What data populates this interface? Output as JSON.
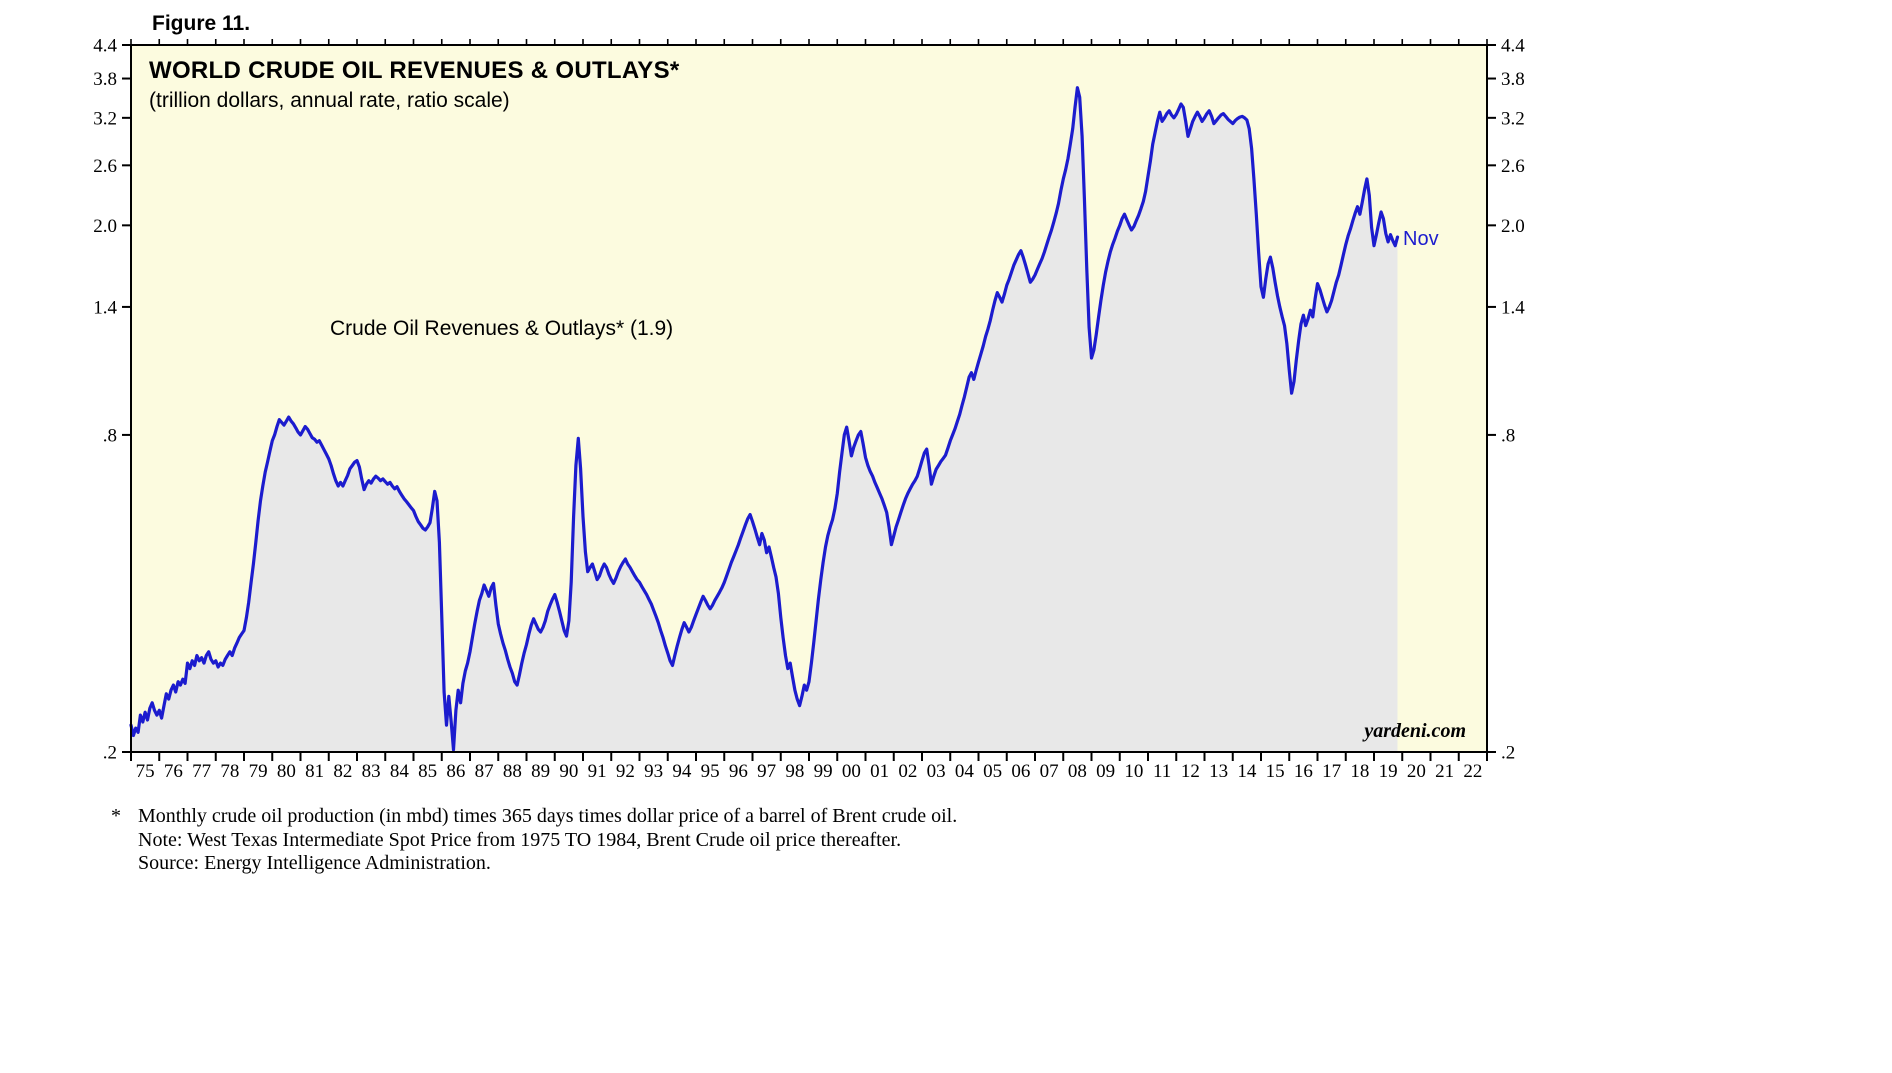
{
  "figure_label": "Figure 11.",
  "chart": {
    "title": "WORLD CRUDE OIL REVENUES & OUTLAYS*",
    "subtitle": "(trillion dollars, annual rate, ratio scale)",
    "series_annotation": "Crude Oil Revenues & Outlays* (1.9)",
    "latest_point_label": "Nov",
    "watermark": "yardeni.com"
  },
  "footnotes": {
    "star": "*",
    "lines": [
      "Monthly crude oil production (in mbd) times 365 days times dollar price of a barrel of Brent crude oil.",
      "Note: West Texas Intermediate Spot Price from 1975 TO 1984, Brent Crude oil price thereafter.",
      "Source: Energy Intelligence Administration."
    ]
  },
  "colors": {
    "plot_bg": "#FCFBDF",
    "area_fill": "#E8E8E8",
    "line": "#1C1CCE",
    "frame": "#000000"
  },
  "chart_data": {
    "type": "line",
    "title": "WORLD CRUDE OIL REVENUES & OUTLAYS*",
    "subtitle": "(trillion dollars, annual rate, ratio scale)",
    "yscale": "log",
    "ylim": [
      0.2,
      4.4
    ],
    "xlim": [
      1975,
      2023
    ],
    "grid": false,
    "legend": "inline annotation",
    "latest_value": 1.9,
    "latest_month": "Nov",
    "y_ticks": [
      {
        "value": 4.4,
        "label": "4.4"
      },
      {
        "value": 3.8,
        "label": "3.8"
      },
      {
        "value": 3.2,
        "label": "3.2"
      },
      {
        "value": 2.6,
        "label": "2.6"
      },
      {
        "value": 2.0,
        "label": "2.0"
      },
      {
        "value": 1.4,
        "label": "1.4"
      },
      {
        "value": 0.8,
        "label": ".8"
      },
      {
        "value": 0.2,
        "label": ".2"
      }
    ],
    "x_tick_labels": [
      "75",
      "76",
      "77",
      "78",
      "79",
      "80",
      "81",
      "82",
      "83",
      "84",
      "85",
      "86",
      "87",
      "88",
      "89",
      "90",
      "91",
      "92",
      "93",
      "94",
      "95",
      "96",
      "97",
      "98",
      "99",
      "00",
      "01",
      "02",
      "03",
      "04",
      "05",
      "06",
      "07",
      "08",
      "09",
      "10",
      "11",
      "12",
      "13",
      "14",
      "15",
      "16",
      "17",
      "18",
      "19",
      "20",
      "21",
      "22"
    ],
    "series": [
      {
        "name": "Crude Oil Revenues & Outlays",
        "start_year": 1975,
        "frequency": "monthly",
        "values": [
          0.225,
          0.215,
          0.222,
          0.218,
          0.235,
          0.228,
          0.238,
          0.23,
          0.242,
          0.248,
          0.24,
          0.235,
          0.24,
          0.232,
          0.245,
          0.258,
          0.252,
          0.262,
          0.268,
          0.26,
          0.272,
          0.268,
          0.275,
          0.27,
          0.295,
          0.288,
          0.298,
          0.292,
          0.305,
          0.298,
          0.302,
          0.295,
          0.305,
          0.31,
          0.3,
          0.295,
          0.298,
          0.29,
          0.295,
          0.292,
          0.3,
          0.305,
          0.31,
          0.305,
          0.315,
          0.322,
          0.33,
          0.335,
          0.34,
          0.36,
          0.385,
          0.42,
          0.455,
          0.5,
          0.55,
          0.6,
          0.64,
          0.68,
          0.71,
          0.745,
          0.78,
          0.8,
          0.83,
          0.855,
          0.845,
          0.835,
          0.85,
          0.865,
          0.85,
          0.84,
          0.825,
          0.81,
          0.8,
          0.815,
          0.83,
          0.82,
          0.805,
          0.79,
          0.785,
          0.775,
          0.78,
          0.765,
          0.75,
          0.735,
          0.72,
          0.7,
          0.675,
          0.655,
          0.64,
          0.65,
          0.64,
          0.655,
          0.67,
          0.69,
          0.7,
          0.71,
          0.715,
          0.695,
          0.66,
          0.63,
          0.645,
          0.655,
          0.648,
          0.66,
          0.668,
          0.662,
          0.655,
          0.66,
          0.652,
          0.645,
          0.65,
          0.64,
          0.632,
          0.638,
          0.625,
          0.615,
          0.605,
          0.598,
          0.59,
          0.582,
          0.575,
          0.56,
          0.548,
          0.54,
          0.532,
          0.528,
          0.535,
          0.545,
          0.58,
          0.625,
          0.6,
          0.5,
          0.36,
          0.26,
          0.225,
          0.255,
          0.228,
          0.202,
          0.24,
          0.262,
          0.248,
          0.27,
          0.285,
          0.295,
          0.31,
          0.33,
          0.35,
          0.37,
          0.388,
          0.4,
          0.415,
          0.405,
          0.395,
          0.41,
          0.418,
          0.38,
          0.35,
          0.335,
          0.322,
          0.312,
          0.3,
          0.29,
          0.282,
          0.272,
          0.268,
          0.28,
          0.295,
          0.308,
          0.32,
          0.335,
          0.348,
          0.358,
          0.35,
          0.342,
          0.338,
          0.345,
          0.355,
          0.37,
          0.38,
          0.39,
          0.398,
          0.385,
          0.37,
          0.355,
          0.34,
          0.332,
          0.355,
          0.42,
          0.56,
          0.7,
          0.788,
          0.69,
          0.56,
          0.48,
          0.44,
          0.448,
          0.455,
          0.44,
          0.425,
          0.432,
          0.445,
          0.455,
          0.448,
          0.435,
          0.425,
          0.418,
          0.428,
          0.44,
          0.45,
          0.458,
          0.465,
          0.455,
          0.448,
          0.44,
          0.432,
          0.425,
          0.42,
          0.412,
          0.405,
          0.398,
          0.39,
          0.382,
          0.372,
          0.362,
          0.352,
          0.34,
          0.33,
          0.318,
          0.308,
          0.298,
          0.292,
          0.305,
          0.318,
          0.33,
          0.342,
          0.352,
          0.345,
          0.338,
          0.345,
          0.355,
          0.365,
          0.375,
          0.385,
          0.395,
          0.388,
          0.38,
          0.374,
          0.38,
          0.388,
          0.395,
          0.402,
          0.41,
          0.42,
          0.432,
          0.445,
          0.458,
          0.47,
          0.482,
          0.495,
          0.51,
          0.525,
          0.54,
          0.555,
          0.565,
          0.548,
          0.53,
          0.512,
          0.495,
          0.52,
          0.505,
          0.478,
          0.49,
          0.47,
          0.448,
          0.43,
          0.4,
          0.36,
          0.33,
          0.305,
          0.288,
          0.295,
          0.278,
          0.262,
          0.252,
          0.245,
          0.255,
          0.268,
          0.262,
          0.272,
          0.295,
          0.322,
          0.355,
          0.39,
          0.425,
          0.458,
          0.49,
          0.515,
          0.535,
          0.552,
          0.58,
          0.62,
          0.68,
          0.74,
          0.8,
          0.828,
          0.78,
          0.73,
          0.758,
          0.78,
          0.8,
          0.812,
          0.77,
          0.725,
          0.7,
          0.682,
          0.668,
          0.65,
          0.635,
          0.62,
          0.605,
          0.588,
          0.57,
          0.535,
          0.495,
          0.515,
          0.535,
          0.552,
          0.57,
          0.588,
          0.605,
          0.62,
          0.632,
          0.645,
          0.655,
          0.668,
          0.69,
          0.715,
          0.74,
          0.752,
          0.7,
          0.645,
          0.668,
          0.688,
          0.7,
          0.712,
          0.722,
          0.732,
          0.755,
          0.78,
          0.8,
          0.822,
          0.848,
          0.875,
          0.91,
          0.945,
          0.985,
          1.03,
          1.05,
          1.02,
          1.06,
          1.1,
          1.14,
          1.18,
          1.23,
          1.27,
          1.32,
          1.38,
          1.44,
          1.49,
          1.46,
          1.43,
          1.48,
          1.54,
          1.58,
          1.63,
          1.68,
          1.72,
          1.76,
          1.79,
          1.74,
          1.68,
          1.62,
          1.56,
          1.58,
          1.61,
          1.65,
          1.69,
          1.73,
          1.78,
          1.84,
          1.9,
          1.96,
          2.03,
          2.11,
          2.2,
          2.33,
          2.45,
          2.55,
          2.68,
          2.85,
          3.05,
          3.35,
          3.65,
          3.5,
          2.95,
          2.25,
          1.65,
          1.28,
          1.12,
          1.16,
          1.24,
          1.34,
          1.44,
          1.54,
          1.63,
          1.71,
          1.78,
          1.84,
          1.89,
          1.95,
          2.0,
          2.06,
          2.1,
          2.05,
          2.0,
          1.96,
          1.99,
          2.04,
          2.09,
          2.15,
          2.22,
          2.32,
          2.48,
          2.65,
          2.85,
          3.0,
          3.15,
          3.28,
          3.15,
          3.2,
          3.26,
          3.3,
          3.24,
          3.2,
          3.25,
          3.32,
          3.4,
          3.35,
          3.15,
          2.95,
          3.05,
          3.15,
          3.22,
          3.28,
          3.22,
          3.15,
          3.2,
          3.26,
          3.3,
          3.22,
          3.12,
          3.16,
          3.2,
          3.24,
          3.26,
          3.22,
          3.18,
          3.15,
          3.12,
          3.16,
          3.19,
          3.21,
          3.22,
          3.2,
          3.17,
          3.05,
          2.8,
          2.45,
          2.1,
          1.78,
          1.53,
          1.46,
          1.58,
          1.69,
          1.74,
          1.66,
          1.56,
          1.47,
          1.4,
          1.34,
          1.29,
          1.19,
          1.06,
          0.96,
          1.01,
          1.11,
          1.21,
          1.3,
          1.35,
          1.29,
          1.33,
          1.38,
          1.34,
          1.45,
          1.55,
          1.51,
          1.46,
          1.41,
          1.37,
          1.4,
          1.44,
          1.5,
          1.56,
          1.61,
          1.68,
          1.76,
          1.84,
          1.91,
          1.97,
          2.04,
          2.11,
          2.17,
          2.1,
          2.21,
          2.34,
          2.45,
          2.28,
          1.98,
          1.83,
          1.92,
          2.02,
          2.12,
          2.06,
          1.93,
          1.86,
          1.92,
          1.87,
          1.83,
          1.9
        ]
      }
    ]
  }
}
